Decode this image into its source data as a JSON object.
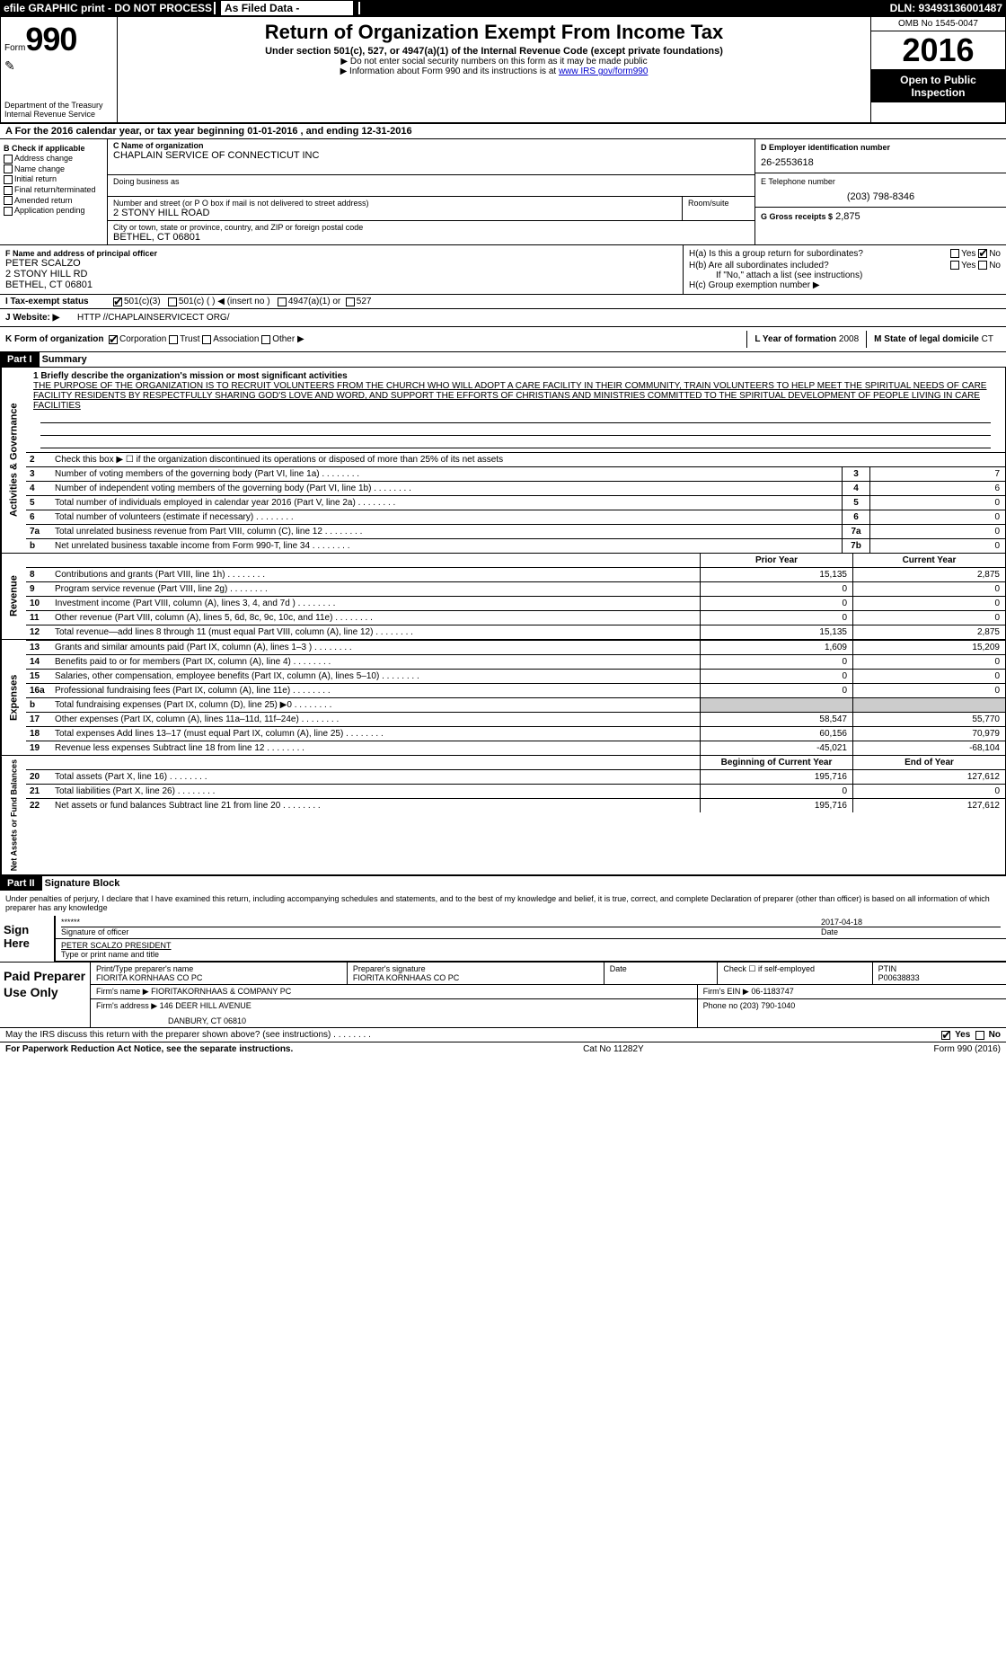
{
  "header_bar": {
    "efile": "efile GRAPHIC print - DO NOT PROCESS",
    "as_filed": "As Filed Data - ",
    "dln": "DLN: 93493136001487"
  },
  "top": {
    "form_prefix": "Form",
    "form_num": "990",
    "dept": "Department of the Treasury\nInternal Revenue Service",
    "title": "Return of Organization Exempt From Income Tax",
    "subtitle": "Under section 501(c), 527, or 4947(a)(1) of the Internal Revenue Code (except private foundations)",
    "note1": "▶ Do not enter social security numbers on this form as it may be made public",
    "note2_pre": "▶ Information about Form 990 and its instructions is at ",
    "note2_link": "www IRS gov/form990",
    "omb": "OMB No 1545-0047",
    "year": "2016",
    "open": "Open to Public Inspection"
  },
  "line_a": "A  For the 2016 calendar year, or tax year beginning 01-01-2016   , and ending 12-31-2016",
  "section_b": {
    "label": "B Check if applicable",
    "items": [
      "Address change",
      "Name change",
      "Initial return",
      "Final return/terminated",
      "Amended return",
      "Application pending"
    ]
  },
  "section_c": {
    "label": "C Name of organization",
    "name": "CHAPLAIN SERVICE OF CONNECTICUT INC",
    "dba_label": "Doing business as",
    "street_label": "Number and street (or P O  box if mail is not delivered to street address)",
    "street": "2 STONY HILL ROAD",
    "room_label": "Room/suite",
    "city_label": "City or town, state or province, country, and ZIP or foreign postal code",
    "city": "BETHEL, CT  06801"
  },
  "section_d": {
    "label": "D Employer identification number",
    "val": "26-2553618"
  },
  "section_e": {
    "label": "E Telephone number",
    "val": "(203) 798-8346"
  },
  "section_g": {
    "label": "G Gross receipts $",
    "val": "2,875"
  },
  "section_f": {
    "label": "F  Name and address of principal officer",
    "name": "PETER SCALZO",
    "street": "2 STONY HILL RD",
    "city": "BETHEL, CT  06801"
  },
  "section_h": {
    "ha": "H(a)  Is this a group return for subordinates?",
    "hb": "H(b)  Are all subordinates included?",
    "hb_note": "If \"No,\" attach a list  (see instructions)",
    "hc": "H(c)  Group exemption number ▶",
    "yes": "Yes",
    "no": "No"
  },
  "line_i": {
    "label": "I  Tax-exempt status",
    "opts": [
      "501(c)(3)",
      "501(c) (  ) ◀ (insert no )",
      "4947(a)(1) or",
      "527"
    ]
  },
  "line_j": {
    "label": "J  Website: ▶",
    "val": "HTTP //CHAPLAINSERVICECT ORG/"
  },
  "line_k": {
    "label": "K Form of organization",
    "opts": [
      "Corporation",
      "Trust",
      "Association",
      "Other ▶"
    ]
  },
  "line_l": {
    "label": "L Year of formation",
    "val": "2008"
  },
  "line_m": {
    "label": "M State of legal domicile",
    "val": "CT"
  },
  "part1": {
    "label": "Part I",
    "title": "Summary"
  },
  "side_labels": {
    "act": "Activities & Governance",
    "rev": "Revenue",
    "exp": "Expenses",
    "net": "Net Assets or Fund Balances"
  },
  "mission": {
    "label": "1  Briefly describe the organization's mission or most significant activities",
    "text": "THE PURPOSE OF THE ORGANIZATION IS TO  RECRUIT VOLUNTEERS FROM THE CHURCH WHO WILL ADOPT A CARE FACILITY IN THEIR COMMUNITY, TRAIN VOLUNTEERS TO HELP MEET THE SPIRITUAL NEEDS OF CARE FACILITY RESIDENTS BY RESPECTFULLY SHARING GOD'S LOVE AND WORD, AND SUPPORT THE EFFORTS OF CHRISTIANS AND MINISTRIES COMMITTED TO THE SPIRITUAL DEVELOPMENT OF PEOPLE LIVING IN CARE FACILITIES"
  },
  "gov_rows": [
    {
      "n": "2",
      "d": "Check this box ▶ ☐ if the organization discontinued its operations or disposed of more than 25% of its net assets",
      "box": "",
      "v": ""
    },
    {
      "n": "3",
      "d": "Number of voting members of the governing body (Part VI, line 1a)",
      "box": "3",
      "v": "7"
    },
    {
      "n": "4",
      "d": "Number of independent voting members of the governing body (Part VI, line 1b)",
      "box": "4",
      "v": "6"
    },
    {
      "n": "5",
      "d": "Total number of individuals employed in calendar year 2016 (Part V, line 2a)",
      "box": "5",
      "v": "0"
    },
    {
      "n": "6",
      "d": "Total number of volunteers (estimate if necessary)",
      "box": "6",
      "v": "0"
    },
    {
      "n": "7a",
      "d": "Total unrelated business revenue from Part VIII, column (C), line 12",
      "box": "7a",
      "v": "0"
    },
    {
      "n": "b",
      "d": "Net unrelated business taxable income from Form 990-T, line 34",
      "box": "7b",
      "v": "0"
    }
  ],
  "col_headers": {
    "prior": "Prior Year",
    "current": "Current Year",
    "begin": "Beginning of Current Year",
    "end": "End of Year"
  },
  "rev_rows": [
    {
      "n": "8",
      "d": "Contributions and grants (Part VIII, line 1h)",
      "p": "15,135",
      "c": "2,875"
    },
    {
      "n": "9",
      "d": "Program service revenue (Part VIII, line 2g)",
      "p": "0",
      "c": "0"
    },
    {
      "n": "10",
      "d": "Investment income (Part VIII, column (A), lines 3, 4, and 7d )",
      "p": "0",
      "c": "0"
    },
    {
      "n": "11",
      "d": "Other revenue (Part VIII, column (A), lines 5, 6d, 8c, 9c, 10c, and 11e)",
      "p": "0",
      "c": "0"
    },
    {
      "n": "12",
      "d": "Total revenue—add lines 8 through 11 (must equal Part VIII, column (A), line 12)",
      "p": "15,135",
      "c": "2,875"
    }
  ],
  "exp_rows": [
    {
      "n": "13",
      "d": "Grants and similar amounts paid (Part IX, column (A), lines 1–3 )",
      "p": "1,609",
      "c": "15,209"
    },
    {
      "n": "14",
      "d": "Benefits paid to or for members (Part IX, column (A), line 4)",
      "p": "0",
      "c": "0"
    },
    {
      "n": "15",
      "d": "Salaries, other compensation, employee benefits (Part IX, column (A), lines 5–10)",
      "p": "0",
      "c": "0"
    },
    {
      "n": "16a",
      "d": "Professional fundraising fees (Part IX, column (A), line 11e)",
      "p": "0",
      "c": "0"
    },
    {
      "n": "b",
      "d": "Total fundraising expenses (Part IX, column (D), line 25) ▶0",
      "p": "",
      "c": "",
      "gray": true
    },
    {
      "n": "17",
      "d": "Other expenses (Part IX, column (A), lines 11a–11d, 11f–24e)",
      "p": "58,547",
      "c": "55,770"
    },
    {
      "n": "18",
      "d": "Total expenses  Add lines 13–17 (must equal Part IX, column (A), line 25)",
      "p": "60,156",
      "c": "70,979"
    },
    {
      "n": "19",
      "d": "Revenue less expenses  Subtract line 18 from line 12",
      "p": "-45,021",
      "c": "-68,104"
    }
  ],
  "net_rows": [
    {
      "n": "20",
      "d": "Total assets (Part X, line 16)",
      "p": "195,716",
      "c": "127,612"
    },
    {
      "n": "21",
      "d": "Total liabilities (Part X, line 26)",
      "p": "0",
      "c": "0"
    },
    {
      "n": "22",
      "d": "Net assets or fund balances  Subtract line 21 from line 20",
      "p": "195,716",
      "c": "127,612"
    }
  ],
  "part2": {
    "label": "Part II",
    "title": "Signature Block"
  },
  "sig": {
    "perjury": "Under penalties of perjury, I declare that I have examined this return, including accompanying schedules and statements, and to the best of my knowledge and belief, it is true, correct, and complete  Declaration of preparer (other than officer) is based on all information of which preparer has any knowledge",
    "sign_here": "Sign Here",
    "stars": "******",
    "sig_label": "Signature of officer",
    "date": "2017-04-18",
    "date_label": "Date",
    "name": "PETER SCALZO PRESIDENT",
    "name_label": "Type or print name and title"
  },
  "paid": {
    "label": "Paid Preparer Use Only",
    "prep_name_label": "Print/Type preparer's name",
    "prep_name": "FIORITA KORNHAAS CO PC",
    "prep_sig_label": "Preparer's signature",
    "prep_sig": "FIORITA KORNHAAS CO PC",
    "date_label": "Date",
    "check_label": "Check ☐ if self-employed",
    "ptin_label": "PTIN",
    "ptin": "P00638833",
    "firm_name_label": "Firm's name      ▶",
    "firm_name": "FIORITAKORNHAAS & COMPANY PC",
    "firm_ein_label": "Firm's EIN ▶",
    "firm_ein": "06-1183747",
    "firm_addr_label": "Firm's address ▶",
    "firm_addr": "146 DEER HILL AVENUE",
    "firm_city": "DANBURY, CT  06810",
    "phone_label": "Phone no",
    "phone": "(203) 790-1040"
  },
  "discuss": {
    "q": "May the IRS discuss this return with the preparer shown above? (see instructions)",
    "yes": "Yes",
    "no": "No"
  },
  "footer": {
    "left": "For Paperwork Reduction Act Notice, see the separate instructions.",
    "mid": "Cat No 11282Y",
    "right": "Form 990 (2016)"
  }
}
